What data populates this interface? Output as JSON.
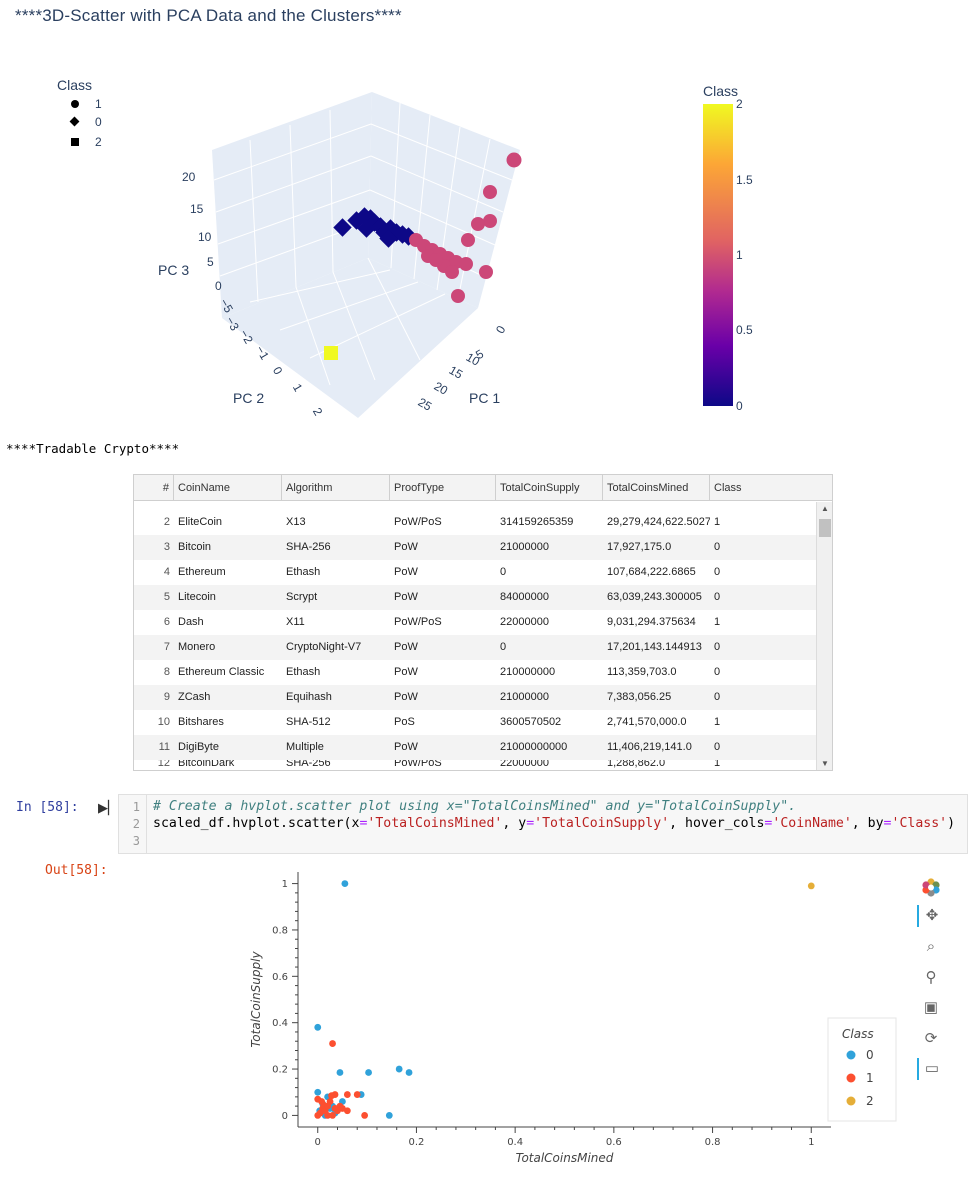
{
  "plot3d": {
    "title": "****3D-Scatter with PCA Data and the Clusters****",
    "legend": {
      "title": "Class",
      "items": [
        {
          "label": "1",
          "symbol": "circle"
        },
        {
          "label": "0",
          "symbol": "diamond"
        },
        {
          "label": "2",
          "symbol": "square"
        }
      ]
    },
    "colorbar": {
      "title": "Class",
      "ticks": [
        "2",
        "1.5",
        "1",
        "0.5",
        "0"
      ],
      "colors": [
        "#f0f921",
        "#fca636",
        "#e16462",
        "#b12a90",
        "#6a00a8",
        "#0d0887"
      ]
    },
    "axes": {
      "z_label": "PC 3",
      "z_ticks": [
        "20",
        "15",
        "10",
        "5",
        "0",
        "−5"
      ],
      "y_label": "PC 2",
      "y_ticks": [
        "−3",
        "−2",
        "−1",
        "0",
        "1",
        "2"
      ],
      "x_label": "PC 1",
      "x_ticks": [
        "0",
        "5",
        "10",
        "15",
        "20",
        "25"
      ]
    },
    "class_colors": {
      "0": "#0d0887",
      "1": "#cc4778",
      "2": "#f0f921"
    }
  },
  "tradable_header": "****Tradable Crypto****",
  "table": {
    "columns": [
      "#",
      "CoinName",
      "Algorithm",
      "ProofType",
      "TotalCoinSupply",
      "TotalCoinsMined",
      "Class"
    ],
    "rows": [
      {
        "idx": "2",
        "coin": "EliteCoin",
        "algo": "X13",
        "proof": "PoW/PoS",
        "supply": "314159265359",
        "mined": "29,279,424,622.5027",
        "cls": "1"
      },
      {
        "idx": "3",
        "coin": "Bitcoin",
        "algo": "SHA-256",
        "proof": "PoW",
        "supply": "21000000",
        "mined": "17,927,175.0",
        "cls": "0"
      },
      {
        "idx": "4",
        "coin": "Ethereum",
        "algo": "Ethash",
        "proof": "PoW",
        "supply": "0",
        "mined": "107,684,222.6865",
        "cls": "0"
      },
      {
        "idx": "5",
        "coin": "Litecoin",
        "algo": "Scrypt",
        "proof": "PoW",
        "supply": "84000000",
        "mined": "63,039,243.300005",
        "cls": "0"
      },
      {
        "idx": "6",
        "coin": "Dash",
        "algo": "X11",
        "proof": "PoW/PoS",
        "supply": "22000000",
        "mined": "9,031,294.375634",
        "cls": "1"
      },
      {
        "idx": "7",
        "coin": "Monero",
        "algo": "CryptoNight-V7",
        "proof": "PoW",
        "supply": "0",
        "mined": "17,201,143.144913",
        "cls": "0"
      },
      {
        "idx": "8",
        "coin": "Ethereum Classic",
        "algo": "Ethash",
        "proof": "PoW",
        "supply": "210000000",
        "mined": "113,359,703.0",
        "cls": "0"
      },
      {
        "idx": "9",
        "coin": "ZCash",
        "algo": "Equihash",
        "proof": "PoW",
        "supply": "21000000",
        "mined": "7,383,056.25",
        "cls": "0"
      },
      {
        "idx": "10",
        "coin": "Bitshares",
        "algo": "SHA-512",
        "proof": "PoS",
        "supply": "3600570502",
        "mined": "2,741,570,000.0",
        "cls": "1"
      },
      {
        "idx": "11",
        "coin": "DigiByte",
        "algo": "Multiple",
        "proof": "PoW",
        "supply": "21000000000",
        "mined": "11,406,219,141.0",
        "cls": "0"
      }
    ],
    "partial_bottom": {
      "idx": "12",
      "coin": "BitcoinDark",
      "algo": "SHA-256",
      "proof": "PoW/PoS",
      "supply": "22000000",
      "mined": "1,288,862.0",
      "cls": "1"
    }
  },
  "code_cell": {
    "in_prompt": "In [58]:",
    "line_numbers": [
      "1",
      "2",
      "3"
    ],
    "comment": "# Create a hvplot.scatter plot using x=\"TotalCoinsMined\" and y=\"TotalCoinSupply\".",
    "code_prefix": "scaled_df.hvplot.scatter(x",
    "eq": "=",
    "arg_x": "'TotalCoinsMined'",
    "sep1": ", y",
    "arg_y": "'TotalCoinSupply'",
    "sep2": ", hover_cols",
    "arg_hover": "'CoinName'",
    "sep3": ", by",
    "arg_by": "'Class'",
    "code_suffix": ")",
    "out_prompt": "Out[58]:"
  },
  "chart_data": {
    "type": "scatter",
    "title": "",
    "xlabel": "TotalCoinsMined",
    "ylabel": "TotalCoinSupply",
    "xlim": [
      -0.04,
      1.04
    ],
    "ylim": [
      -0.05,
      1.05
    ],
    "x_ticks": [
      0,
      0.2,
      0.4,
      0.6,
      0.8,
      1
    ],
    "y_ticks": [
      0,
      0.2,
      0.4,
      0.6,
      0.8,
      1
    ],
    "grid": false,
    "legend": {
      "title": "Class",
      "placement": "right"
    },
    "series": [
      {
        "name": "0",
        "color": "#30a2da",
        "points": [
          [
            0.055,
            1.0
          ],
          [
            0.0,
            0.38
          ],
          [
            0.165,
            0.2
          ],
          [
            0.185,
            0.185
          ],
          [
            0.103,
            0.185
          ],
          [
            0.045,
            0.185
          ],
          [
            0.0,
            0.1
          ],
          [
            0.02,
            0.08
          ],
          [
            0.088,
            0.09
          ],
          [
            0.145,
            0.0
          ],
          [
            0.01,
            0.05
          ],
          [
            0.03,
            0.04
          ],
          [
            0.004,
            0.02
          ],
          [
            0.035,
            0.01
          ],
          [
            0.015,
            0.0
          ],
          [
            0.025,
            0.03
          ],
          [
            0.05,
            0.06
          ]
        ]
      },
      {
        "name": "1",
        "color": "#fc4f30",
        "points": [
          [
            0.03,
            0.31
          ],
          [
            0.0,
            0.07
          ],
          [
            0.035,
            0.09
          ],
          [
            0.06,
            0.09
          ],
          [
            0.08,
            0.09
          ],
          [
            0.045,
            0.04
          ],
          [
            0.095,
            0.0
          ],
          [
            0.01,
            0.03
          ],
          [
            0.02,
            0.0
          ],
          [
            0.005,
            0.01
          ],
          [
            0.04,
            0.02
          ],
          [
            0.025,
            0.06
          ],
          [
            0.015,
            0.02
          ],
          [
            0.03,
            0.0
          ],
          [
            0.05,
            0.03
          ],
          [
            0.012,
            0.045
          ],
          [
            0.0,
            0.0
          ],
          [
            0.028,
            0.085
          ],
          [
            0.06,
            0.02
          ],
          [
            0.008,
            0.06
          ],
          [
            0.02,
            0.04
          ],
          [
            0.035,
            0.03
          ]
        ]
      },
      {
        "name": "2",
        "color": "#e5ae38",
        "points": [
          [
            1.0,
            0.99
          ]
        ]
      }
    ]
  },
  "toolbar": {
    "tools": [
      "bokeh-logo-icon",
      "pan-icon",
      "box-zoom-icon",
      "wheel-zoom-icon",
      "save-icon",
      "reset-icon",
      "hover-icon"
    ]
  }
}
